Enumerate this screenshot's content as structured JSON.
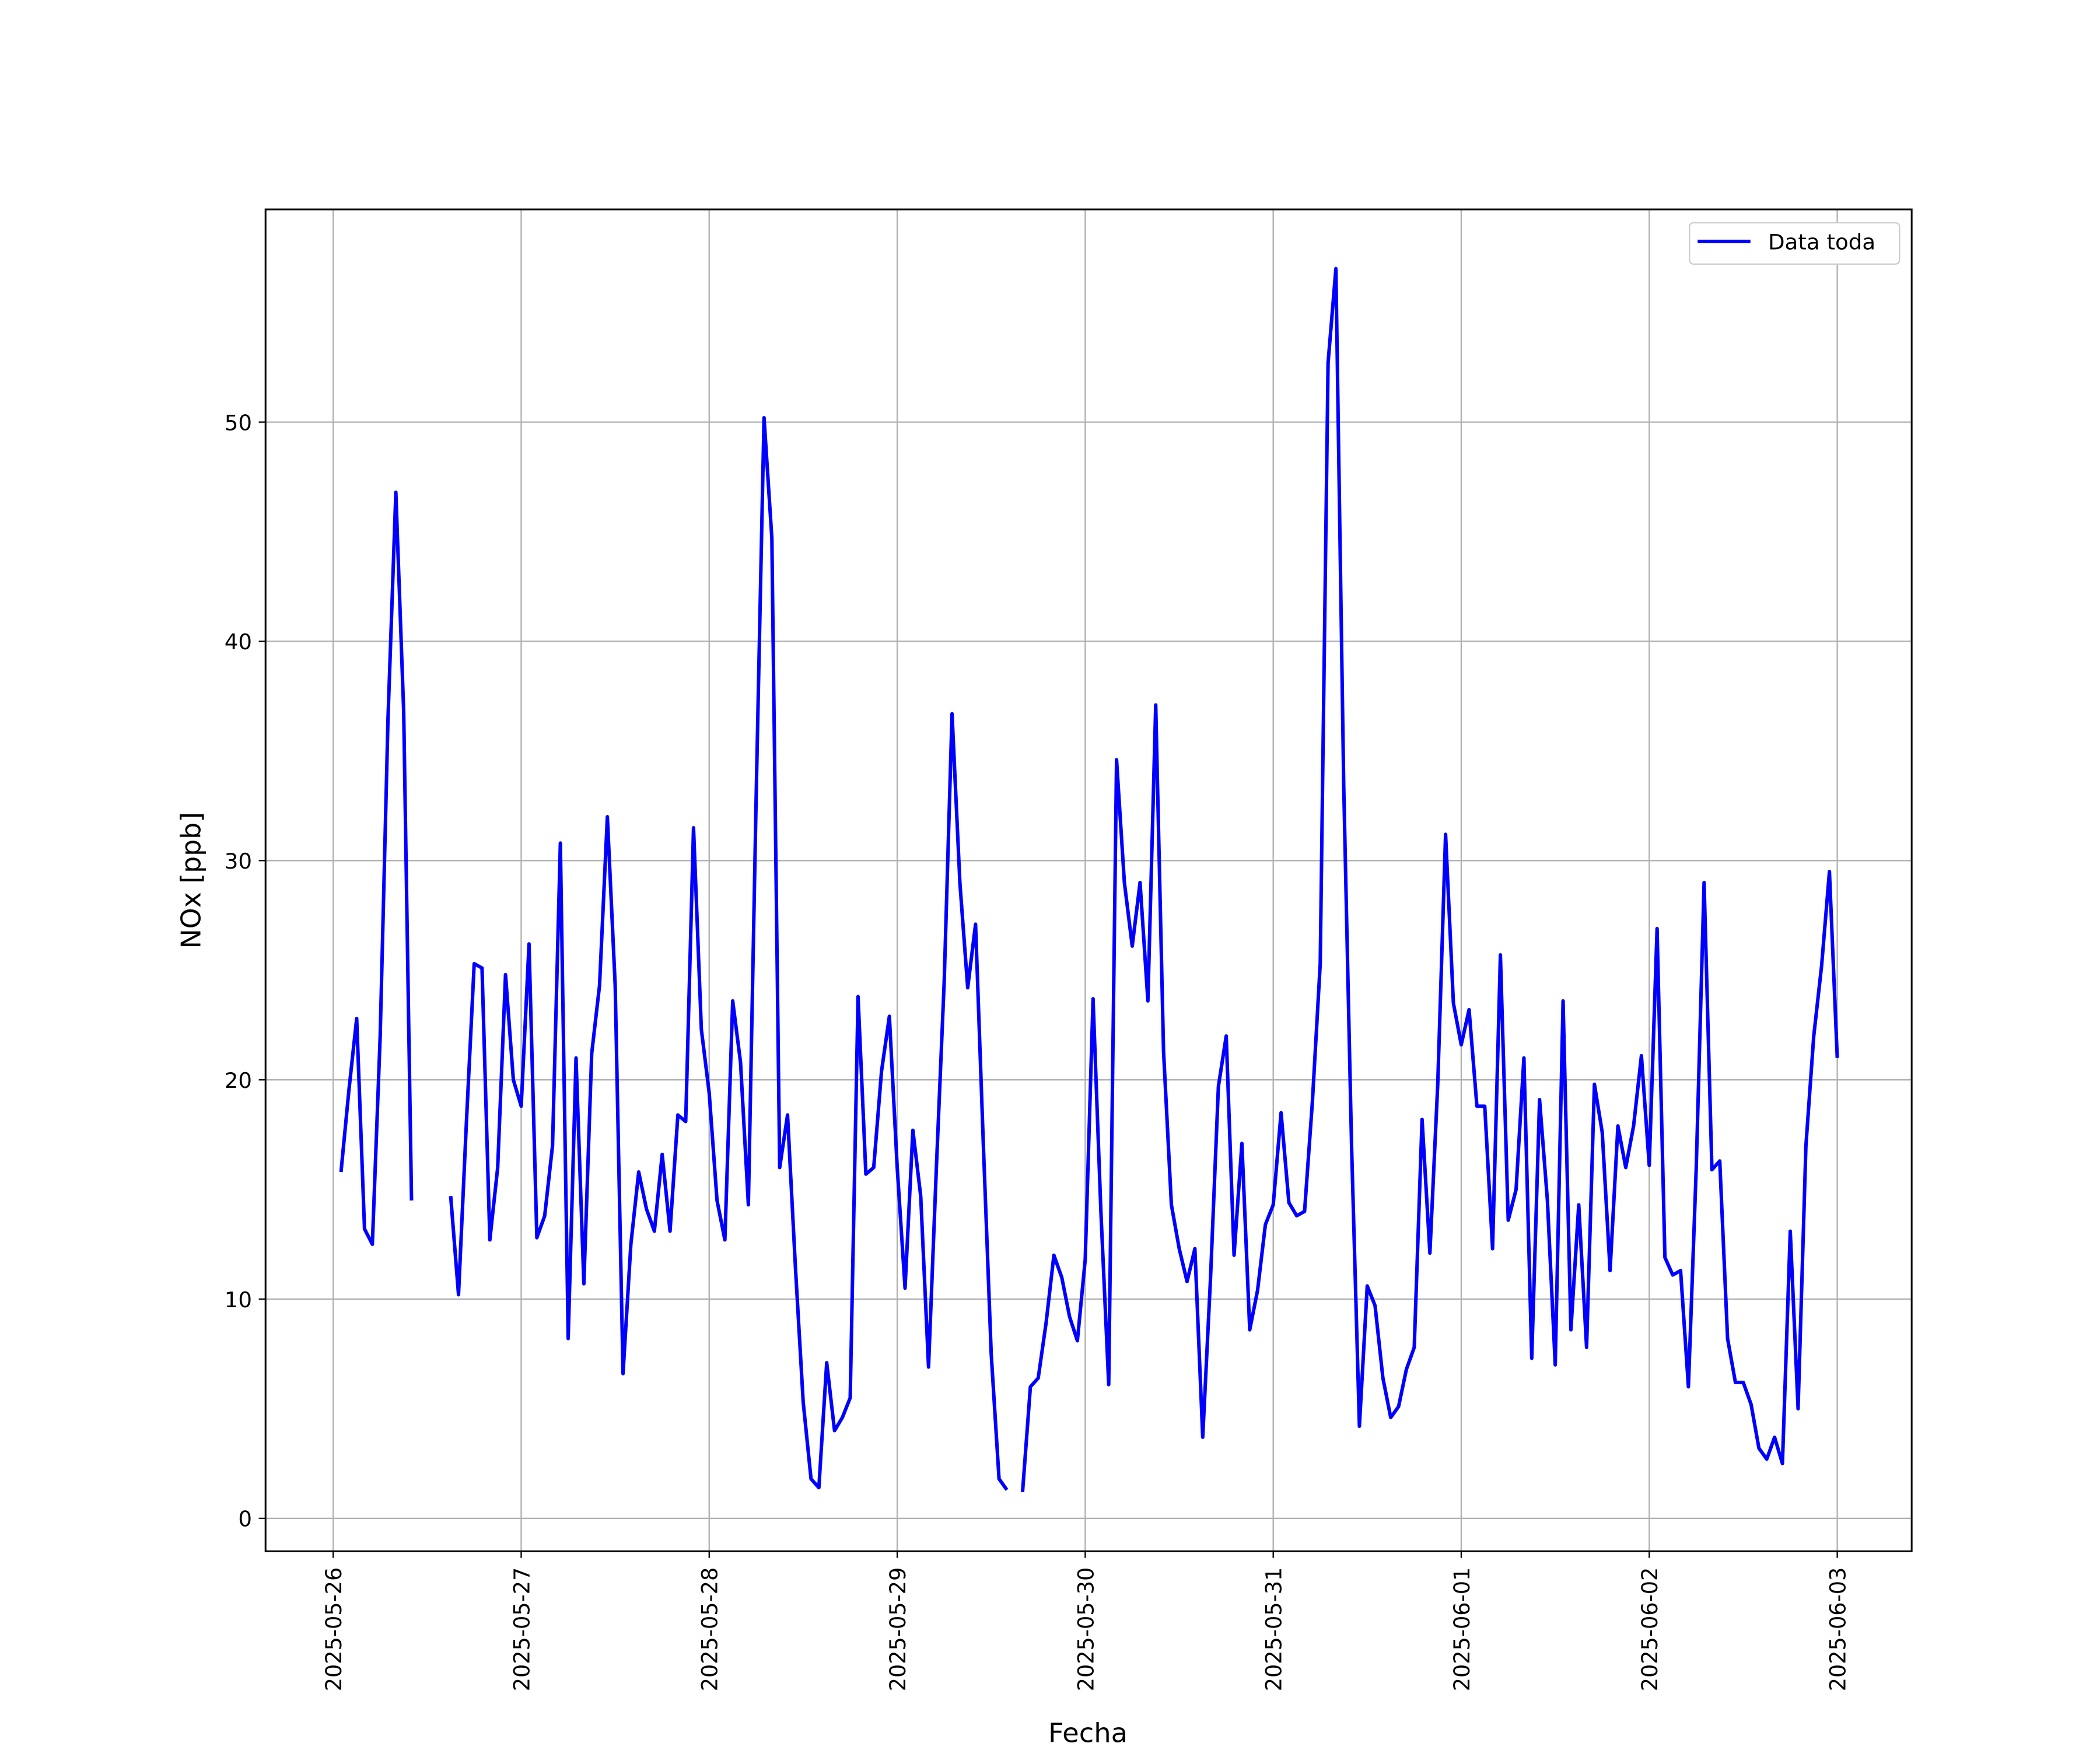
{
  "chart_data": {
    "type": "line",
    "xlabel": "Fecha",
    "ylabel": "NOx [ppb]",
    "x": [
      "2025-05-26 01:00",
      "2025-05-26 02:00",
      "2025-05-26 03:00",
      "2025-05-26 04:00",
      "2025-05-26 05:00",
      "2025-05-26 06:00",
      "2025-05-26 07:00",
      "2025-05-26 08:00",
      "2025-05-26 09:00",
      "2025-05-26 10:00",
      "2025-05-26 11:00",
      "2025-05-26 12:00",
      "2025-05-26 13:00",
      "2025-05-26 14:00",
      "2025-05-26 15:00",
      "2025-05-26 16:00",
      "2025-05-26 17:00",
      "2025-05-26 18:00",
      "2025-05-26 19:00",
      "2025-05-26 20:00",
      "2025-05-26 21:00",
      "2025-05-26 22:00",
      "2025-05-26 23:00",
      "2025-05-27 00:00",
      "2025-05-27 01:00",
      "2025-05-27 02:00",
      "2025-05-27 03:00",
      "2025-05-27 04:00",
      "2025-05-27 05:00",
      "2025-05-27 06:00",
      "2025-05-27 07:00",
      "2025-05-27 08:00",
      "2025-05-27 09:00",
      "2025-05-27 10:00",
      "2025-05-27 11:00",
      "2025-05-27 12:00",
      "2025-05-27 13:00",
      "2025-05-27 14:00",
      "2025-05-27 15:00",
      "2025-05-27 16:00",
      "2025-05-27 17:00",
      "2025-05-27 18:00",
      "2025-05-27 19:00",
      "2025-05-27 20:00",
      "2025-05-27 21:00",
      "2025-05-27 22:00",
      "2025-05-27 23:00",
      "2025-05-28 00:00",
      "2025-05-28 01:00",
      "2025-05-28 02:00",
      "2025-05-28 03:00",
      "2025-05-28 04:00",
      "2025-05-28 05:00",
      "2025-05-28 06:00",
      "2025-05-28 07:00",
      "2025-05-28 08:00",
      "2025-05-28 09:00",
      "2025-05-28 10:00",
      "2025-05-28 11:00",
      "2025-05-28 12:00",
      "2025-05-28 13:00",
      "2025-05-28 14:00",
      "2025-05-28 15:00",
      "2025-05-28 16:00",
      "2025-05-28 17:00",
      "2025-05-28 18:00",
      "2025-05-28 19:00",
      "2025-05-28 20:00",
      "2025-05-28 21:00",
      "2025-05-28 22:00",
      "2025-05-28 23:00",
      "2025-05-29 00:00",
      "2025-05-29 01:00",
      "2025-05-29 02:00",
      "2025-05-29 03:00",
      "2025-05-29 04:00",
      "2025-05-29 05:00",
      "2025-05-29 06:00",
      "2025-05-29 07:00",
      "2025-05-29 08:00",
      "2025-05-29 09:00",
      "2025-05-29 10:00",
      "2025-05-29 11:00",
      "2025-05-29 12:00",
      "2025-05-29 13:00",
      "2025-05-29 14:00",
      "2025-05-29 15:00",
      "2025-05-29 16:00",
      "2025-05-29 17:00",
      "2025-05-29 18:00",
      "2025-05-29 19:00",
      "2025-05-29 20:00",
      "2025-05-29 21:00",
      "2025-05-29 22:00",
      "2025-05-29 23:00",
      "2025-05-30 00:00",
      "2025-05-30 01:00",
      "2025-05-30 02:00",
      "2025-05-30 03:00",
      "2025-05-30 04:00",
      "2025-05-30 05:00",
      "2025-05-30 06:00",
      "2025-05-30 07:00",
      "2025-05-30 08:00",
      "2025-05-30 09:00",
      "2025-05-30 10:00",
      "2025-05-30 11:00",
      "2025-05-30 12:00",
      "2025-05-30 13:00",
      "2025-05-30 14:00",
      "2025-05-30 15:00",
      "2025-05-30 16:00",
      "2025-05-30 17:00",
      "2025-05-30 18:00",
      "2025-05-30 19:00",
      "2025-05-30 20:00",
      "2025-05-30 21:00",
      "2025-05-30 22:00",
      "2025-05-30 23:00",
      "2025-05-31 00:00",
      "2025-05-31 01:00",
      "2025-05-31 02:00",
      "2025-05-31 03:00",
      "2025-05-31 04:00",
      "2025-05-31 05:00",
      "2025-05-31 06:00",
      "2025-05-31 07:00",
      "2025-05-31 08:00",
      "2025-05-31 09:00",
      "2025-05-31 10:00",
      "2025-05-31 11:00",
      "2025-05-31 12:00",
      "2025-05-31 13:00",
      "2025-05-31 14:00",
      "2025-05-31 15:00",
      "2025-05-31 16:00",
      "2025-05-31 17:00",
      "2025-05-31 18:00",
      "2025-05-31 19:00",
      "2025-05-31 20:00",
      "2025-05-31 21:00",
      "2025-05-31 22:00",
      "2025-05-31 23:00",
      "2025-06-01 00:00",
      "2025-06-01 01:00",
      "2025-06-01 02:00",
      "2025-06-01 03:00",
      "2025-06-01 04:00",
      "2025-06-01 05:00",
      "2025-06-01 06:00",
      "2025-06-01 07:00",
      "2025-06-01 08:00",
      "2025-06-01 09:00",
      "2025-06-01 10:00",
      "2025-06-01 11:00",
      "2025-06-01 12:00",
      "2025-06-01 13:00",
      "2025-06-01 14:00",
      "2025-06-01 15:00",
      "2025-06-01 16:00",
      "2025-06-01 17:00",
      "2025-06-01 18:00",
      "2025-06-01 19:00",
      "2025-06-01 20:00",
      "2025-06-01 21:00",
      "2025-06-01 22:00",
      "2025-06-01 23:00",
      "2025-06-02 00:00",
      "2025-06-02 01:00",
      "2025-06-02 02:00",
      "2025-06-02 03:00",
      "2025-06-02 04:00",
      "2025-06-02 05:00",
      "2025-06-02 06:00",
      "2025-06-02 07:00",
      "2025-06-02 08:00",
      "2025-06-02 09:00",
      "2025-06-02 10:00",
      "2025-06-02 11:00",
      "2025-06-02 12:00",
      "2025-06-02 13:00",
      "2025-06-02 14:00",
      "2025-06-02 15:00",
      "2025-06-02 16:00",
      "2025-06-02 17:00",
      "2025-06-02 18:00",
      "2025-06-02 19:00",
      "2025-06-02 20:00",
      "2025-06-02 21:00",
      "2025-06-02 22:00",
      "2025-06-02 23:00",
      "2025-06-03 00:00"
    ],
    "series": [
      {
        "name": "Data toda",
        "color": "#0000ff",
        "values": [
          15.8,
          19.5,
          22.8,
          13.2,
          12.5,
          22,
          36.5,
          46.8,
          36.8,
          14.5,
          null,
          null,
          null,
          null,
          14.7,
          10.2,
          18,
          25.3,
          25.1,
          12.7,
          16,
          24.8,
          20,
          18.8,
          26.2,
          12.8,
          13.8,
          17,
          30.8,
          8.2,
          21,
          10.7,
          21.2,
          24.3,
          32,
          24.3,
          6.6,
          12.5,
          15.8,
          14.1,
          13.1,
          16.6,
          13.1,
          18.4,
          18.1,
          31.5,
          22.3,
          19.4,
          14.5,
          12.7,
          23.6,
          20.8,
          14.3,
          33,
          50.2,
          44.7,
          16,
          18.4,
          11.5,
          5.3,
          1.8,
          1.4,
          7.1,
          4,
          4.6,
          5.5,
          23.8,
          15.7,
          16,
          20.4,
          22.9,
          16,
          10.5,
          17.7,
          14.7,
          6.9,
          16,
          24.5,
          36.7,
          29,
          24.2,
          27.1,
          17,
          7.5,
          1.8,
          1.3,
          null,
          1.2,
          6,
          6.4,
          8.9,
          12,
          11,
          9.2,
          8.1,
          11.8,
          23.7,
          14,
          6.1,
          34.6,
          29,
          26.1,
          29,
          23.6,
          37.1,
          21.3,
          14.3,
          12.3,
          10.8,
          12.3,
          3.7,
          11,
          19.7,
          22,
          12,
          17.1,
          8.6,
          10.4,
          13.4,
          14.3,
          18.5,
          14.4,
          13.8,
          14,
          19,
          25.3,
          52.7,
          57,
          33.4,
          17,
          4.2,
          10.6,
          9.7,
          6.4,
          4.6,
          5.1,
          6.8,
          7.8,
          18.2,
          12.1,
          19.8,
          31.2,
          23.5,
          21.6,
          23.2,
          18.8,
          18.8,
          12.3,
          25.7,
          13.6,
          15,
          21,
          7.3,
          19.1,
          14.5,
          7,
          23.6,
          8.6,
          14.3,
          7.8,
          19.8,
          17.6,
          11.3,
          17.9,
          16,
          17.9,
          21.1,
          16.1,
          26.9,
          11.9,
          11.1,
          11.3,
          6,
          16,
          29,
          15.9,
          16.3,
          8.2,
          6.2,
          6.2,
          5.2,
          3.2,
          2.7,
          3.7,
          2.5,
          13.1,
          5,
          17,
          22,
          25.2,
          29.5,
          21
        ]
      }
    ],
    "xlim": [
      "2025-05-25 15:22",
      "2025-06-03 09:30"
    ],
    "xticks": [
      "2025-05-26",
      "2025-05-27",
      "2025-05-28",
      "2025-05-29",
      "2025-05-30",
      "2025-05-31",
      "2025-06-01",
      "2025-06-02",
      "2025-06-03"
    ],
    "ylim": [
      -1.5,
      59.7
    ],
    "yticks": [
      0,
      10,
      20,
      30,
      40,
      50
    ],
    "grid": true,
    "legend": "upper right"
  }
}
